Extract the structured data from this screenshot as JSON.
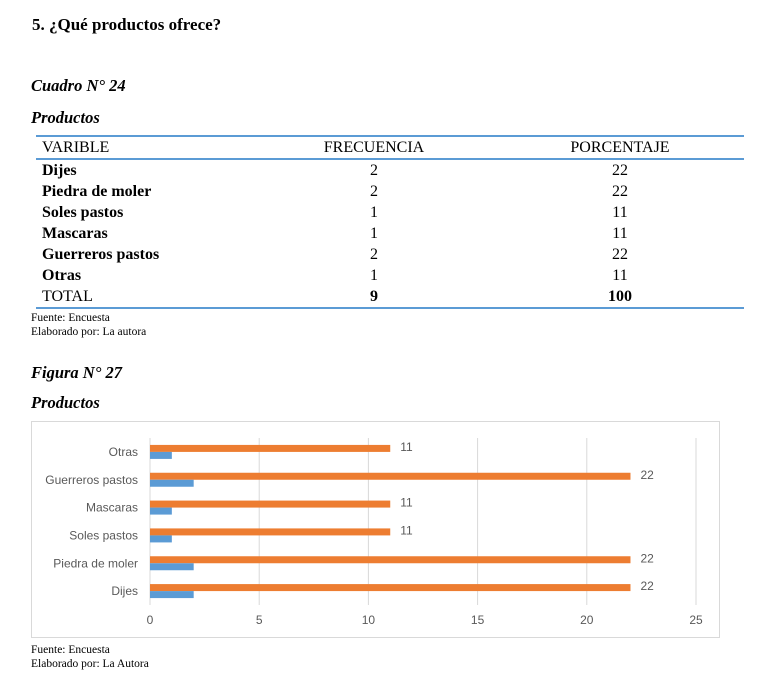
{
  "question": "5. ¿Qué productos ofrece?",
  "table_caption": {
    "number": "Cuadro N° 24",
    "title": "Productos"
  },
  "table": {
    "headers": [
      "VARIBLE",
      "FRECUENCIA",
      "PORCENTAJE"
    ],
    "rows": [
      {
        "label": "Dijes",
        "frecuencia": "2",
        "porcentaje": "22"
      },
      {
        "label": "Piedra de moler",
        "frecuencia": "2",
        "porcentaje": "22"
      },
      {
        "label": "Soles pastos",
        "frecuencia": "1",
        "porcentaje": "11"
      },
      {
        "label": "Mascaras",
        "frecuencia": "1",
        "porcentaje": "11"
      },
      {
        "label": "Guerreros pastos",
        "frecuencia": "2",
        "porcentaje": "22"
      },
      {
        "label": "Otras",
        "frecuencia": "1",
        "porcentaje": "11"
      }
    ],
    "total": {
      "label": "TOTAL",
      "frecuencia": "9",
      "porcentaje": "100"
    }
  },
  "table_notes": {
    "source": "Fuente: Encuesta",
    "author": "Elaborado por: La autora"
  },
  "figure_caption": {
    "number": "Figura N° 27",
    "title": "Productos"
  },
  "chart_data": {
    "type": "bar",
    "orientation": "horizontal",
    "categories": [
      "Dijes",
      "Piedra de moler",
      "Soles pastos",
      "Mascaras",
      "Guerreros pastos",
      "Otras"
    ],
    "series": [
      {
        "values": [
          2,
          2,
          1,
          1,
          2,
          1
        ],
        "color": "#5b9bd5",
        "data_labels": false
      },
      {
        "values": [
          22,
          22,
          11,
          11,
          22,
          11
        ],
        "color": "#ed7d31",
        "data_labels": true
      }
    ],
    "xlim": [
      0,
      25
    ],
    "xticks": [
      0,
      5,
      10,
      15,
      20,
      25
    ],
    "grid": true,
    "title": "",
    "xlabel": "",
    "ylabel": ""
  },
  "figure_notes": {
    "source": "Fuente: Encuesta",
    "author": "Elaborado por: La Autora"
  }
}
